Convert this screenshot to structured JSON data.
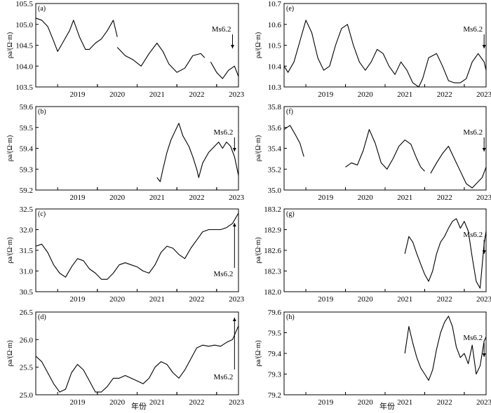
{
  "x_axis_label": "年份",
  "chart_data": [
    {
      "type": "line",
      "panel": "(a)",
      "ylabel": "ρa/(Ω·m)",
      "xlim": [
        2018.45,
        2023.55
      ],
      "ylim": [
        103.5,
        105.5
      ],
      "yticks": [
        "103.5",
        "104.0",
        "104.5",
        "105.0",
        "105.5"
      ],
      "xticks": [
        "2019",
        "2020",
        "2021",
        "2022",
        "2023"
      ],
      "annotation": "Ms6.2",
      "annotation_x": 2023.4,
      "series": [
        {
          "x": [
            2018.45,
            2018.6,
            2018.75,
            2018.9,
            2019.0,
            2019.15,
            2019.3,
            2019.4,
            2019.55,
            2019.7,
            2019.8,
            2019.95,
            2020.1,
            2020.25,
            2020.4,
            2020.5
          ],
          "y": [
            105.15,
            105.1,
            104.95,
            104.6,
            104.35,
            104.6,
            104.85,
            105.1,
            104.7,
            104.4,
            104.4,
            104.55,
            104.65,
            104.85,
            105.1,
            104.7
          ]
        },
        {
          "x": [
            2020.5,
            2020.7,
            2020.9,
            2021.1,
            2021.3,
            2021.5,
            2021.65,
            2021.8,
            2022.0,
            2022.2,
            2022.4,
            2022.6,
            2022.7
          ],
          "y": [
            104.45,
            104.25,
            104.15,
            104.0,
            104.3,
            104.55,
            104.35,
            104.05,
            103.85,
            103.95,
            104.25,
            104.3,
            104.2
          ]
        },
        {
          "x": [
            2022.85,
            2023.0,
            2023.15,
            2023.3,
            2023.45,
            2023.55
          ],
          "y": [
            104.1,
            103.85,
            103.7,
            103.9,
            104.0,
            103.75
          ]
        }
      ]
    },
    {
      "type": "line",
      "panel": "(e)",
      "ylabel": "ρa/(Ω·m)",
      "xlim": [
        2018.45,
        2023.55
      ],
      "ylim": [
        10.3,
        10.7
      ],
      "yticks": [
        "10.3",
        "10.4",
        "10.5",
        "10.6",
        "10.7"
      ],
      "xticks": [
        "2019",
        "2020",
        "2021",
        "2022",
        "2023"
      ],
      "annotation": "Ms6.2",
      "annotation_x": 2023.5,
      "series": [
        {
          "x": [
            2018.45,
            2018.55,
            2018.7,
            2018.85,
            2019.0,
            2019.15,
            2019.3,
            2019.45,
            2019.6,
            2019.75,
            2019.9,
            2020.05,
            2020.2,
            2020.35,
            2020.5,
            2020.65,
            2020.8,
            2020.95,
            2021.1,
            2021.25,
            2021.4,
            2021.55,
            2021.7,
            2021.85,
            2021.95,
            2022.1,
            2022.3,
            2022.45,
            2022.6,
            2022.75,
            2022.9,
            2023.05,
            2023.2,
            2023.35,
            2023.5,
            2023.55
          ],
          "y": [
            10.4,
            10.37,
            10.42,
            10.52,
            10.62,
            10.56,
            10.44,
            10.38,
            10.4,
            10.5,
            10.58,
            10.6,
            10.5,
            10.42,
            10.38,
            10.42,
            10.48,
            10.46,
            10.4,
            10.36,
            10.42,
            10.38,
            10.32,
            10.3,
            10.34,
            10.44,
            10.46,
            10.4,
            10.33,
            10.32,
            10.32,
            10.34,
            10.42,
            10.46,
            10.42,
            10.38
          ]
        }
      ]
    },
    {
      "type": "line",
      "panel": "(b)",
      "ylabel": "ρa/(Ω·m)",
      "xlim": [
        2018.45,
        2023.55
      ],
      "ylim": [
        59.2,
        59.6
      ],
      "yticks": [
        "59.2",
        "59.3",
        "59.4",
        "59.5",
        "59.6"
      ],
      "xticks": [
        "2019",
        "2020",
        "2021",
        "2022",
        "2023"
      ],
      "annotation": "Ms6.2",
      "annotation_x": 2023.45,
      "series": [
        {
          "x": [
            2021.5,
            2021.58,
            2021.65,
            2021.75,
            2021.85,
            2021.95,
            2022.05,
            2022.15,
            2022.3,
            2022.4,
            2022.5,
            2022.55,
            2022.65,
            2022.8,
            2022.95,
            2023.05,
            2023.15,
            2023.25,
            2023.35,
            2023.45,
            2023.55
          ],
          "y": [
            59.26,
            59.24,
            59.3,
            59.38,
            59.44,
            59.48,
            59.52,
            59.46,
            59.41,
            59.36,
            59.3,
            59.26,
            59.33,
            59.38,
            59.41,
            59.43,
            59.4,
            59.43,
            59.41,
            59.36,
            59.27
          ]
        }
      ]
    },
    {
      "type": "line",
      "panel": "(f)",
      "ylabel": "ρa/(Ω·m)",
      "xlim": [
        2018.45,
        2023.55
      ],
      "ylim": [
        35.0,
        35.8
      ],
      "yticks": [
        "35.0",
        "35.2",
        "35.4",
        "35.6",
        "35.8"
      ],
      "xticks": [
        "2019",
        "2020",
        "2021",
        "2022",
        "2023"
      ],
      "annotation": "Ms6.2",
      "annotation_x": 2023.5,
      "series": [
        {
          "x": [
            2018.45,
            2018.6,
            2018.75,
            2018.85,
            2018.95
          ],
          "y": [
            35.58,
            35.62,
            35.52,
            35.45,
            35.32
          ]
        },
        {
          "x": [
            2020.0,
            2020.15,
            2020.3,
            2020.45,
            2020.6,
            2020.75,
            2020.9,
            2021.05,
            2021.2,
            2021.35,
            2021.5,
            2021.65,
            2021.8,
            2021.9,
            2022.0
          ],
          "y": [
            35.22,
            35.26,
            35.24,
            35.38,
            35.58,
            35.45,
            35.26,
            35.2,
            35.3,
            35.42,
            35.48,
            35.44,
            35.3,
            35.22,
            35.18
          ]
        },
        {
          "x": [
            2022.15,
            2022.3,
            2022.45,
            2022.6,
            2022.75,
            2022.9,
            2023.05,
            2023.2,
            2023.35,
            2023.45,
            2023.55
          ],
          "y": [
            35.16,
            35.26,
            35.35,
            35.42,
            35.3,
            35.18,
            35.06,
            35.02,
            35.08,
            35.12,
            35.22
          ]
        }
      ]
    },
    {
      "type": "line",
      "panel": "(c)",
      "ylabel": "ρa/(Ω·m)",
      "xlim": [
        2018.45,
        2023.55
      ],
      "ylim": [
        30.5,
        32.5
      ],
      "yticks": [
        "30.5",
        "31.0",
        "31.5",
        "32.0",
        "32.5"
      ],
      "xticks": [
        "2019",
        "2020",
        "2021",
        "2022",
        "2023"
      ],
      "annotation": "Ms6.2",
      "annotation_x": 2023.45,
      "series": [
        {
          "x": [
            2018.45,
            2018.6,
            2018.75,
            2018.9,
            2019.05,
            2019.2,
            2019.35,
            2019.5,
            2019.65,
            2019.8,
            2019.95,
            2020.1,
            2020.25,
            2020.4,
            2020.55,
            2020.7,
            2020.85,
            2021.0,
            2021.15,
            2021.3,
            2021.45,
            2021.6,
            2021.75,
            2021.9,
            2022.05,
            2022.2,
            2022.35,
            2022.5,
            2022.65,
            2022.8,
            2022.95,
            2023.1,
            2023.25,
            2023.4,
            2023.55
          ],
          "y": [
            31.6,
            31.65,
            31.45,
            31.15,
            30.95,
            30.85,
            31.1,
            31.3,
            31.25,
            31.05,
            30.95,
            30.8,
            30.8,
            30.95,
            31.15,
            31.2,
            31.15,
            31.1,
            31.0,
            30.95,
            31.15,
            31.45,
            31.6,
            31.55,
            31.4,
            31.3,
            31.55,
            31.75,
            31.95,
            32.0,
            32.0,
            32.0,
            32.05,
            32.15,
            32.4
          ]
        }
      ]
    },
    {
      "type": "line",
      "panel": "(g)",
      "ylabel": "ρa/(Ω·m)",
      "xlim": [
        2018.45,
        2023.55
      ],
      "ylim": [
        182.0,
        183.2
      ],
      "yticks": [
        "182.0",
        "182.3",
        "182.6",
        "182.9",
        "183.2"
      ],
      "xticks": [
        "2019",
        "2020",
        "2021",
        "2022",
        "2023"
      ],
      "annotation": "Ms6.2",
      "annotation_x": 2023.5,
      "series": [
        {
          "x": [
            2021.5,
            2021.6,
            2021.7,
            2021.8,
            2021.9,
            2022.0,
            2022.1,
            2022.2,
            2022.3,
            2022.4,
            2022.5,
            2022.6,
            2022.7,
            2022.8,
            2022.9,
            2023.0,
            2023.1,
            2023.2,
            2023.3,
            2023.4,
            2023.5,
            2023.55
          ],
          "y": [
            182.55,
            182.8,
            182.72,
            182.55,
            182.4,
            182.25,
            182.15,
            182.3,
            182.55,
            182.72,
            182.8,
            182.92,
            183.02,
            183.06,
            182.92,
            183.02,
            182.88,
            182.5,
            182.15,
            182.05,
            182.7,
            182.88
          ]
        }
      ]
    },
    {
      "type": "line",
      "panel": "(d)",
      "ylabel": "ρa/(Ω·m)",
      "xlim": [
        2018.45,
        2023.55
      ],
      "ylim": [
        25.0,
        26.5
      ],
      "yticks": [
        "25.0",
        "25.5",
        "26.0",
        "26.5"
      ],
      "xticks": [
        "2019",
        "2020",
        "2021",
        "2022",
        "2023"
      ],
      "annotation": "Ms6.2",
      "annotation_x": 2023.45,
      "series": [
        {
          "x": [
            2018.45,
            2018.6,
            2018.75,
            2018.9,
            2019.05,
            2019.2,
            2019.35,
            2019.5,
            2019.65,
            2019.8,
            2019.95,
            2020.1,
            2020.25,
            2020.4,
            2020.55,
            2020.7,
            2020.85,
            2021.0,
            2021.15,
            2021.3,
            2021.45,
            2021.6,
            2021.75,
            2021.9,
            2022.05,
            2022.2,
            2022.35,
            2022.5,
            2022.65,
            2022.8,
            2022.95,
            2023.1,
            2023.25,
            2023.4,
            2023.55
          ],
          "y": [
            25.7,
            25.6,
            25.4,
            25.2,
            25.05,
            25.1,
            25.4,
            25.55,
            25.45,
            25.25,
            25.05,
            25.05,
            25.15,
            25.3,
            25.3,
            25.35,
            25.3,
            25.25,
            25.2,
            25.3,
            25.5,
            25.6,
            25.55,
            25.4,
            25.3,
            25.45,
            25.65,
            25.85,
            25.9,
            25.88,
            25.9,
            25.88,
            25.95,
            26.0,
            26.25
          ]
        }
      ]
    },
    {
      "type": "line",
      "panel": "(h)",
      "ylabel": "ρa/(Ω·m)",
      "xlim": [
        2018.45,
        2023.55
      ],
      "ylim": [
        79.2,
        79.6
      ],
      "yticks": [
        "79.2",
        "79.3",
        "79.4",
        "79.5",
        "79.6"
      ],
      "xticks": [
        "2019",
        "2020",
        "2021",
        "2022",
        "2023"
      ],
      "annotation": "Ms6.2",
      "annotation_x": 2023.5,
      "series": [
        {
          "x": [
            2021.5,
            2021.6,
            2021.7,
            2021.8,
            2021.9,
            2022.0,
            2022.1,
            2022.2,
            2022.3,
            2022.4,
            2022.5,
            2022.6,
            2022.7,
            2022.8,
            2022.9,
            2023.0,
            2023.1,
            2023.2,
            2023.3,
            2023.4,
            2023.5,
            2023.55
          ],
          "y": [
            79.4,
            79.53,
            79.45,
            79.38,
            79.33,
            79.3,
            79.27,
            79.32,
            79.42,
            79.5,
            79.55,
            79.58,
            79.53,
            79.43,
            79.38,
            79.4,
            79.35,
            79.44,
            79.3,
            79.34,
            79.46,
            79.48
          ]
        }
      ]
    }
  ]
}
